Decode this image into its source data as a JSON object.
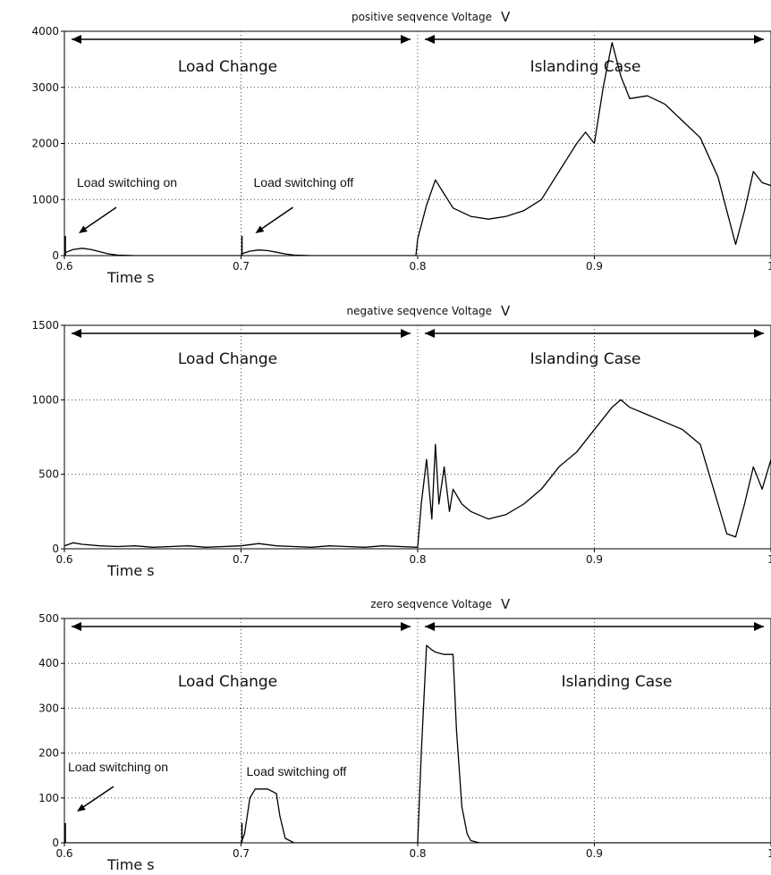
{
  "chart_data": [
    {
      "type": "line",
      "title": "positive seqvence Voltage",
      "unit": "V",
      "xlabel": "Time s",
      "xlim": [
        0.6,
        1.0
      ],
      "ylim": [
        0,
        4000
      ],
      "xticks": [
        0.6,
        0.7,
        0.8,
        0.9,
        1.0
      ],
      "xtick_labels": [
        "0.6",
        "0.7",
        "0.8",
        "0.9",
        "1"
      ],
      "yticks": [
        0,
        1000,
        2000,
        3000,
        4000
      ],
      "grid": true,
      "regions": [
        {
          "label": "Load Change",
          "from": 0.6,
          "to": 0.8
        },
        {
          "label": "Islanding Case",
          "from": 0.8,
          "to": 1.0
        }
      ],
      "annotations": [
        {
          "text": "Load switching on",
          "x": 0.6
        },
        {
          "text": "Load switching off",
          "x": 0.7
        }
      ],
      "series": [
        {
          "x": [
            0.6,
            0.601,
            0.605,
            0.61,
            0.615,
            0.62,
            0.625,
            0.63,
            0.64,
            0.7,
            0.701,
            0.705,
            0.71,
            0.715,
            0.72,
            0.725,
            0.73,
            0.74,
            0.799,
            0.8,
            0.805,
            0.81,
            0.815,
            0.82,
            0.83,
            0.84,
            0.85,
            0.86,
            0.87,
            0.88,
            0.89,
            0.895,
            0.9,
            0.905,
            0.91,
            0.915,
            0.92,
            0.93,
            0.94,
            0.95,
            0.96,
            0.97,
            0.975,
            0.98,
            0.985,
            0.99,
            0.995,
            1.0
          ],
          "y": [
            0,
            60,
            110,
            130,
            110,
            70,
            30,
            10,
            0,
            0,
            40,
            80,
            100,
            90,
            60,
            30,
            10,
            0,
            0,
            300,
            900,
            1350,
            1100,
            850,
            700,
            650,
            700,
            800,
            1000,
            1500,
            2000,
            2200,
            2000,
            3000,
            3800,
            3200,
            2800,
            2850,
            2700,
            2400,
            2100,
            1400,
            800,
            200,
            800,
            1500,
            1300,
            1250
          ]
        }
      ]
    },
    {
      "type": "line",
      "title": "negative seqvence Voltage",
      "unit": "V",
      "xlabel": "Time s",
      "xlim": [
        0.6,
        1.0
      ],
      "ylim": [
        0,
        1500
      ],
      "xticks": [
        0.6,
        0.7,
        0.8,
        0.9,
        1.0
      ],
      "xtick_labels": [
        "0.6",
        "0.7",
        "0.8",
        "0.9",
        "1"
      ],
      "yticks": [
        0,
        500,
        1000,
        1500
      ],
      "grid": true,
      "regions": [
        {
          "label": "Load Change",
          "from": 0.6,
          "to": 0.8
        },
        {
          "label": "Islanding Case",
          "from": 0.8,
          "to": 1.0
        }
      ],
      "annotations": [],
      "series": [
        {
          "x": [
            0.6,
            0.605,
            0.61,
            0.62,
            0.63,
            0.64,
            0.65,
            0.66,
            0.67,
            0.68,
            0.69,
            0.7,
            0.71,
            0.72,
            0.73,
            0.74,
            0.75,
            0.76,
            0.77,
            0.78,
            0.79,
            0.8,
            0.802,
            0.805,
            0.808,
            0.81,
            0.812,
            0.815,
            0.818,
            0.82,
            0.825,
            0.83,
            0.84,
            0.85,
            0.86,
            0.87,
            0.88,
            0.89,
            0.9,
            0.91,
            0.915,
            0.92,
            0.93,
            0.94,
            0.95,
            0.96,
            0.965,
            0.97,
            0.975,
            0.98,
            0.985,
            0.99,
            0.995,
            1.0
          ],
          "y": [
            20,
            40,
            30,
            20,
            15,
            20,
            10,
            15,
            20,
            10,
            15,
            20,
            35,
            20,
            15,
            10,
            20,
            15,
            10,
            20,
            15,
            10,
            300,
            600,
            200,
            700,
            300,
            550,
            250,
            400,
            300,
            250,
            200,
            230,
            300,
            400,
            550,
            650,
            800,
            950,
            1000,
            950,
            900,
            850,
            800,
            700,
            500,
            300,
            100,
            80,
            300,
            550,
            400,
            600
          ]
        }
      ]
    },
    {
      "type": "line",
      "title": "zero seqvence Voltage",
      "unit": "V",
      "xlabel": "Time s",
      "xlim": [
        0.6,
        1.0
      ],
      "ylim": [
        0,
        500
      ],
      "xticks": [
        0.6,
        0.7,
        0.8,
        0.9,
        1.0
      ],
      "xtick_labels": [
        "0.6",
        "0.7",
        "0.8",
        "0.9",
        "1"
      ],
      "yticks": [
        0,
        100,
        200,
        300,
        400,
        500
      ],
      "grid": true,
      "regions": [
        {
          "label": "Load Change",
          "from": 0.6,
          "to": 0.8
        },
        {
          "label": "Islanding Case",
          "from": 0.8,
          "to": 1.0
        }
      ],
      "annotations": [
        {
          "text": "Load switching on",
          "x": 0.6
        },
        {
          "text": "Load switching off",
          "x": 0.7
        }
      ],
      "series": [
        {
          "x": [
            0.6,
            0.7,
            0.702,
            0.705,
            0.708,
            0.71,
            0.715,
            0.72,
            0.722,
            0.725,
            0.73,
            0.8,
            0.802,
            0.805,
            0.808,
            0.81,
            0.815,
            0.82,
            0.822,
            0.825,
            0.828,
            0.83,
            0.835,
            1.0
          ],
          "y": [
            0,
            0,
            20,
            100,
            120,
            120,
            120,
            110,
            60,
            10,
            0,
            0,
            200,
            440,
            430,
            425,
            420,
            420,
            250,
            80,
            20,
            5,
            0,
            0
          ]
        }
      ]
    }
  ]
}
